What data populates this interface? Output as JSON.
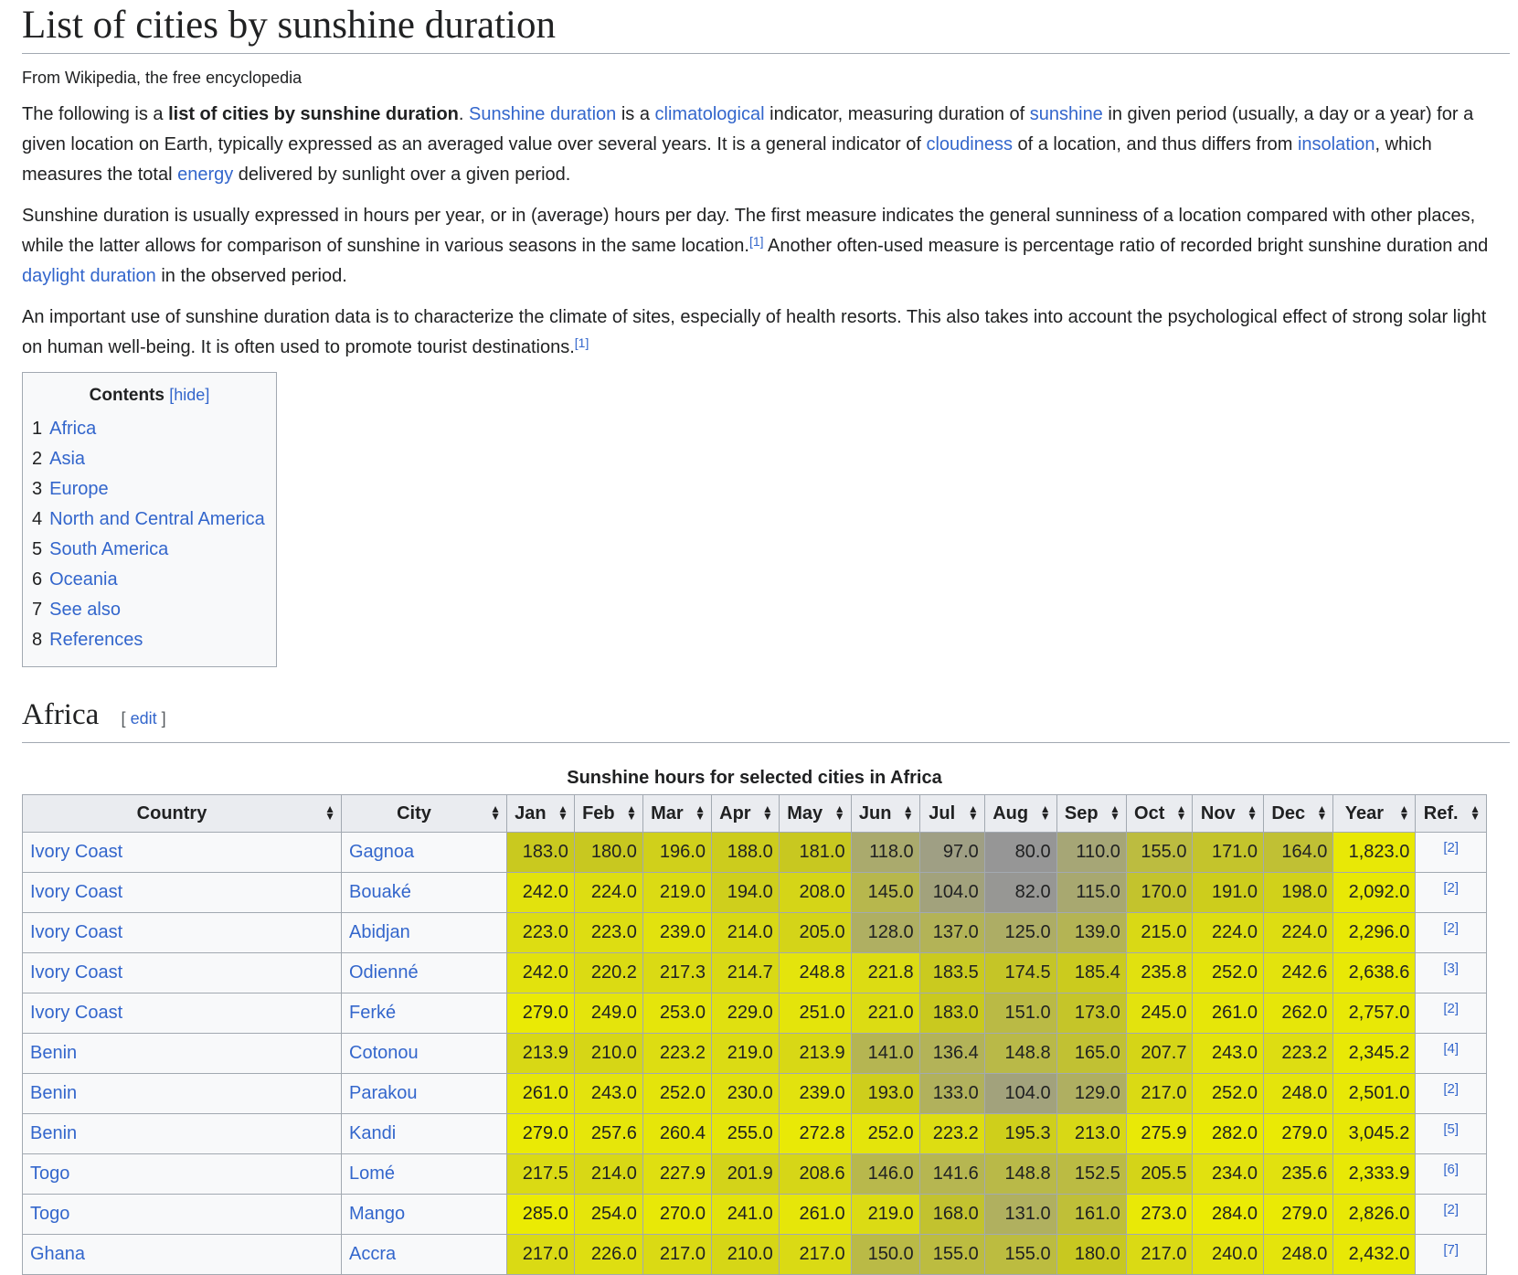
{
  "page": {
    "title": "List of cities by sunshine duration",
    "tagline": "From Wikipedia, the free encyclopedia"
  },
  "intro": {
    "p1": {
      "t1": "The following is a ",
      "bold": "list of cities by sunshine duration",
      "t2": ". ",
      "link1": "Sunshine duration",
      "t3": " is a ",
      "link2": "climatological",
      "t4": " indicator, measuring duration of ",
      "link3": "sunshine",
      "t5": " in given period (usually, a day or a year) for a given location on Earth, typically expressed as an averaged value over several years. It is a general indicator of ",
      "link4": "cloudiness",
      "t6": " of a location, and thus differs from ",
      "link5": "insolation",
      "t7": ", which measures the total ",
      "link6": "energy",
      "t8": " delivered by sunlight over a given period."
    },
    "p2": {
      "t1": "Sunshine duration is usually expressed in hours per year, or in (average) hours per day. The first measure indicates the general sunniness of a location compared with other places, while the latter allows for comparison of sunshine in various seasons in the same location.",
      "ref1": "[1]",
      "t2": " Another often-used measure is percentage ratio of recorded bright sunshine duration and ",
      "link1": "daylight duration",
      "t3": " in the observed period."
    },
    "p3": {
      "t1": "An important use of sunshine duration data is to characterize the climate of sites, especially of health resorts. This also takes into account the psychological effect of strong solar light on human well-being. It is often used to promote tourist destinations.",
      "ref1": "[1]"
    }
  },
  "toc": {
    "title": "Contents",
    "hide": "[hide]",
    "items": [
      {
        "num": "1",
        "label": "Africa"
      },
      {
        "num": "2",
        "label": "Asia"
      },
      {
        "num": "3",
        "label": "Europe"
      },
      {
        "num": "4",
        "label": "North and Central America"
      },
      {
        "num": "5",
        "label": "South America"
      },
      {
        "num": "6",
        "label": "Oceania"
      },
      {
        "num": "7",
        "label": "See also"
      },
      {
        "num": "8",
        "label": "References"
      }
    ]
  },
  "section": {
    "heading": "Africa",
    "edit_open": "[",
    "edit": "edit",
    "edit_close": "]"
  },
  "table": {
    "caption": "Sunshine hours for selected cities in Africa",
    "sort_icon": "sort-icon",
    "headers": [
      "Country",
      "City",
      "Jan",
      "Feb",
      "Mar",
      "Apr",
      "May",
      "Jun",
      "Jul",
      "Aug",
      "Sep",
      "Oct",
      "Nov",
      "Dec",
      "Year",
      "Ref."
    ],
    "rows": [
      {
        "country": "Ivory Coast",
        "city": "Gagnoa",
        "values": [
          "183.0",
          "180.0",
          "196.0",
          "188.0",
          "181.0",
          "118.0",
          "97.0",
          "80.0",
          "110.0",
          "155.0",
          "171.0",
          "164.0",
          "1,823.0"
        ],
        "ref": "[2]"
      },
      {
        "country": "Ivory Coast",
        "city": "Bouaké",
        "values": [
          "242.0",
          "224.0",
          "219.0",
          "194.0",
          "208.0",
          "145.0",
          "104.0",
          "82.0",
          "115.0",
          "170.0",
          "191.0",
          "198.0",
          "2,092.0"
        ],
        "ref": "[2]"
      },
      {
        "country": "Ivory Coast",
        "city": "Abidjan",
        "values": [
          "223.0",
          "223.0",
          "239.0",
          "214.0",
          "205.0",
          "128.0",
          "137.0",
          "125.0",
          "139.0",
          "215.0",
          "224.0",
          "224.0",
          "2,296.0"
        ],
        "ref": "[2]"
      },
      {
        "country": "Ivory Coast",
        "city": "Odienné",
        "values": [
          "242.0",
          "220.2",
          "217.3",
          "214.7",
          "248.8",
          "221.8",
          "183.5",
          "174.5",
          "185.4",
          "235.8",
          "252.0",
          "242.6",
          "2,638.6"
        ],
        "ref": "[3]"
      },
      {
        "country": "Ivory Coast",
        "city": "Ferké",
        "values": [
          "279.0",
          "249.0",
          "253.0",
          "229.0",
          "251.0",
          "221.0",
          "183.0",
          "151.0",
          "173.0",
          "245.0",
          "261.0",
          "262.0",
          "2,757.0"
        ],
        "ref": "[2]"
      },
      {
        "country": "Benin",
        "city": "Cotonou",
        "values": [
          "213.9",
          "210.0",
          "223.2",
          "219.0",
          "213.9",
          "141.0",
          "136.4",
          "148.8",
          "165.0",
          "207.7",
          "243.0",
          "223.2",
          "2,345.2"
        ],
        "ref": "[4]"
      },
      {
        "country": "Benin",
        "city": "Parakou",
        "values": [
          "261.0",
          "243.0",
          "252.0",
          "230.0",
          "239.0",
          "193.0",
          "133.0",
          "104.0",
          "129.0",
          "217.0",
          "252.0",
          "248.0",
          "2,501.0"
        ],
        "ref": "[2]"
      },
      {
        "country": "Benin",
        "city": "Kandi",
        "values": [
          "279.0",
          "257.6",
          "260.4",
          "255.0",
          "272.8",
          "252.0",
          "223.2",
          "195.3",
          "213.0",
          "275.9",
          "282.0",
          "279.0",
          "3,045.2"
        ],
        "ref": "[5]"
      },
      {
        "country": "Togo",
        "city": "Lomé",
        "values": [
          "217.5",
          "214.0",
          "227.9",
          "201.9",
          "208.6",
          "146.0",
          "141.6",
          "148.8",
          "152.5",
          "205.5",
          "234.0",
          "235.6",
          "2,333.9"
        ],
        "ref": "[6]"
      },
      {
        "country": "Togo",
        "city": "Mango",
        "values": [
          "285.0",
          "254.0",
          "270.0",
          "241.0",
          "261.0",
          "219.0",
          "168.0",
          "131.0",
          "161.0",
          "273.0",
          "284.0",
          "279.0",
          "2,826.0"
        ],
        "ref": "[2]"
      },
      {
        "country": "Ghana",
        "city": "Accra",
        "values": [
          "217.0",
          "226.0",
          "217.0",
          "210.0",
          "217.0",
          "150.0",
          "155.0",
          "155.0",
          "180.0",
          "217.0",
          "240.0",
          "248.0",
          "2,432.0"
        ],
        "ref": "[7]"
      }
    ]
  }
}
